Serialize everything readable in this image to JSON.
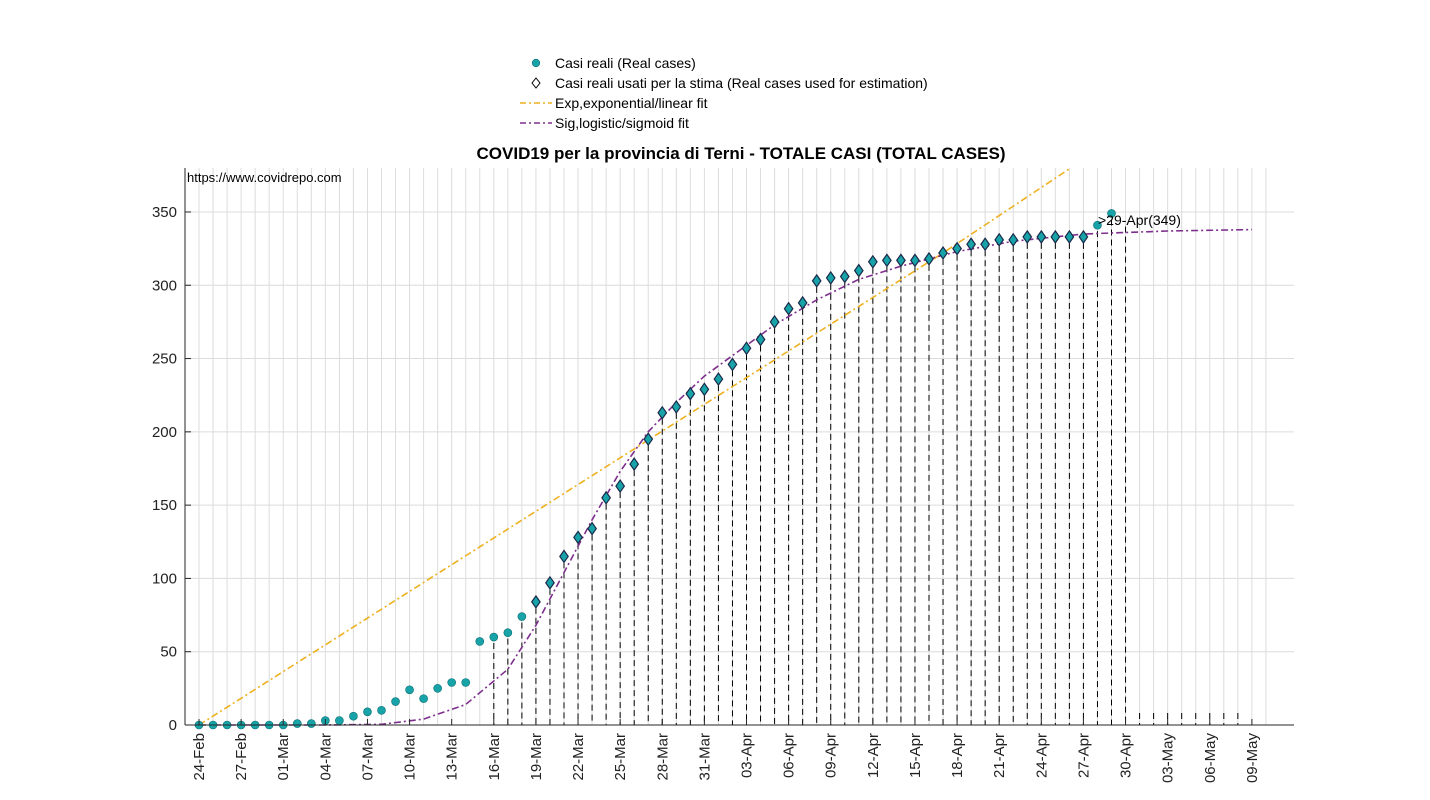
{
  "chart_data": {
    "type": "scatter",
    "title": "COVID19 per la provincia di Terni - TOTALE CASI (TOTAL CASES)",
    "source_note": "https://www.covidrepo.com",
    "annotation": ">29-Apr(349)",
    "xlabel": "",
    "ylabel": "",
    "ylim": [
      0,
      380
    ],
    "y_ticks": [
      0,
      50,
      100,
      150,
      200,
      250,
      300,
      350
    ],
    "x_range": [
      "24-Feb",
      "12-May"
    ],
    "x_tick_labels": [
      "24-Feb",
      "27-Feb",
      "01-Mar",
      "04-Mar",
      "07-Mar",
      "10-Mar",
      "13-Mar",
      "16-Mar",
      "19-Mar",
      "22-Mar",
      "25-Mar",
      "28-Mar",
      "31-Mar",
      "03-Apr",
      "06-Apr",
      "09-Apr",
      "12-Apr",
      "15-Apr",
      "18-Apr",
      "21-Apr",
      "24-Apr",
      "27-Apr",
      "30-Apr",
      "03-May",
      "06-May",
      "09-May"
    ],
    "grid": true,
    "legend": {
      "placement": "top-center",
      "entries": [
        {
          "label": "Casi reali (Real cases)",
          "marker": "circle",
          "color": "#17a3a8"
        },
        {
          "label": "Casi reali usati per la stima (Real cases used for estimation)",
          "marker": "diamond",
          "color": "#000000"
        },
        {
          "label": "Exp,exponential/linear fit",
          "marker": "dash-dot",
          "color": "#edb120"
        },
        {
          "label": "Sig,logistic/sigmoid fit",
          "marker": "dash-dot",
          "color": "#7e2f8e"
        }
      ]
    },
    "series": [
      {
        "name": "Casi reali (Real cases)",
        "x": [
          "24-Feb",
          "25-Feb",
          "26-Feb",
          "27-Feb",
          "28-Feb",
          "29-Feb",
          "01-Mar",
          "02-Mar",
          "03-Mar",
          "04-Mar",
          "05-Mar",
          "06-Mar",
          "07-Mar",
          "08-Mar",
          "09-Mar",
          "10-Mar",
          "11-Mar",
          "12-Mar",
          "13-Mar",
          "14-Mar",
          "15-Mar",
          "16-Mar",
          "17-Mar",
          "18-Mar",
          "19-Mar",
          "20-Mar",
          "21-Mar",
          "22-Mar",
          "23-Mar",
          "24-Mar",
          "25-Mar",
          "26-Mar",
          "27-Mar",
          "28-Mar",
          "29-Mar",
          "30-Mar",
          "31-Mar",
          "01-Apr",
          "02-Apr",
          "03-Apr",
          "04-Apr",
          "05-Apr",
          "06-Apr",
          "07-Apr",
          "08-Apr",
          "09-Apr",
          "10-Apr",
          "11-Apr",
          "12-Apr",
          "13-Apr",
          "14-Apr",
          "15-Apr",
          "16-Apr",
          "17-Apr",
          "18-Apr",
          "19-Apr",
          "20-Apr",
          "21-Apr",
          "22-Apr",
          "23-Apr",
          "24-Apr",
          "25-Apr",
          "26-Apr",
          "27-Apr",
          "28-Apr",
          "29-Apr"
        ],
        "values": [
          0,
          0,
          0,
          0,
          0,
          0,
          0,
          1,
          1,
          3,
          3,
          6,
          9,
          10,
          16,
          24,
          18,
          25,
          29,
          29,
          57,
          60,
          63,
          74,
          84,
          97,
          115,
          128,
          134,
          155,
          163,
          178,
          195,
          213,
          217,
          226,
          229,
          236,
          246,
          257,
          263,
          275,
          284,
          288,
          303,
          305,
          306,
          310,
          316,
          317,
          317,
          317,
          318,
          322,
          325,
          328,
          328,
          331,
          331,
          333,
          333,
          333,
          333,
          333,
          341,
          349
        ],
        "color": "#17a3a8"
      },
      {
        "name": "Casi reali usati per la stima (Real cases used for estimation)",
        "x": [
          "19-Mar",
          "20-Mar",
          "21-Mar",
          "22-Mar",
          "23-Mar",
          "24-Mar",
          "25-Mar",
          "26-Mar",
          "27-Mar",
          "28-Mar",
          "29-Mar",
          "30-Mar",
          "31-Mar",
          "01-Apr",
          "02-Apr",
          "03-Apr",
          "04-Apr",
          "05-Apr",
          "06-Apr",
          "07-Apr",
          "08-Apr",
          "09-Apr",
          "10-Apr",
          "11-Apr",
          "12-Apr",
          "13-Apr",
          "14-Apr",
          "15-Apr",
          "16-Apr",
          "17-Apr",
          "18-Apr",
          "19-Apr",
          "20-Apr",
          "21-Apr",
          "22-Apr",
          "23-Apr",
          "24-Apr",
          "25-Apr",
          "26-Apr",
          "27-Apr"
        ],
        "values": [
          84,
          97,
          115,
          128,
          134,
          155,
          163,
          178,
          195,
          213,
          217,
          226,
          229,
          236,
          246,
          257,
          263,
          275,
          284,
          288,
          303,
          305,
          306,
          310,
          316,
          317,
          317,
          317,
          318,
          322,
          325,
          328,
          328,
          331,
          331,
          333,
          333,
          333,
          333,
          333
        ],
        "color": "#000000"
      },
      {
        "name": "Exp,exponential/linear fit",
        "x": [
          "24-Feb",
          "17-Apr",
          "30-Apr"
        ],
        "values": [
          0,
          322,
          405
        ],
        "color": "#edb120"
      },
      {
        "name": "Sig,logistic/sigmoid fit",
        "x": [
          "24-Feb",
          "04-Mar",
          "08-Mar",
          "11-Mar",
          "14-Mar",
          "17-Mar",
          "19-Mar",
          "21-Mar",
          "23-Mar",
          "25-Mar",
          "27-Mar",
          "29-Mar",
          "31-Mar",
          "02-Apr",
          "05-Apr",
          "08-Apr",
          "11-Apr",
          "14-Apr",
          "18-Apr",
          "22-Apr",
          "27-Apr",
          "03-May",
          "09-May"
        ],
        "values": [
          0,
          0,
          0.5,
          4,
          14,
          38,
          68,
          104,
          140,
          173,
          200,
          220,
          238,
          252,
          273,
          290,
          304,
          313,
          323,
          330,
          335,
          337,
          338
        ],
        "color": "#7e2f8e"
      }
    ],
    "drop_lines": {
      "from": "16-Mar",
      "to": "30-Apr"
    }
  }
}
